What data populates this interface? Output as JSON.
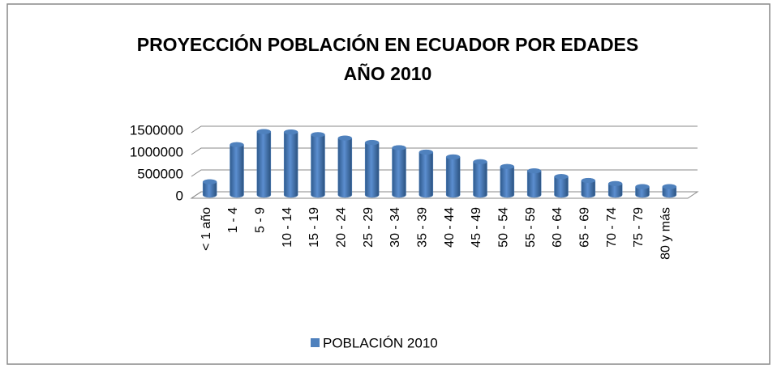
{
  "chart_data": {
    "type": "bar",
    "title": [
      "PROYECCIÓN POBLACIÓN EN ECUADOR POR EDADES",
      "AÑO 2010"
    ],
    "categories": [
      "< 1 año",
      "1 - 4",
      "5 - 9",
      "10 - 14",
      "15 - 19",
      "20 - 24",
      "25 - 29",
      "30 - 34",
      "35 - 39",
      "40 - 44",
      "45 - 49",
      "50 - 54",
      "55 - 59",
      "60 - 64",
      "65 - 69",
      "70 - 74",
      "75 - 79",
      "80 y más"
    ],
    "series": [
      {
        "name": "POBLACIÓN 2010",
        "color": "#4f81bd",
        "values": [
          300000,
          1150000,
          1450000,
          1440000,
          1380000,
          1300000,
          1200000,
          1080000,
          980000,
          870000,
          760000,
          650000,
          550000,
          420000,
          330000,
          260000,
          190000,
          190000
        ]
      }
    ],
    "ylim": [
      0,
      1500000
    ],
    "yticks": [
      0,
      500000,
      1000000,
      1500000
    ],
    "grid": true,
    "legend": "bottom"
  }
}
